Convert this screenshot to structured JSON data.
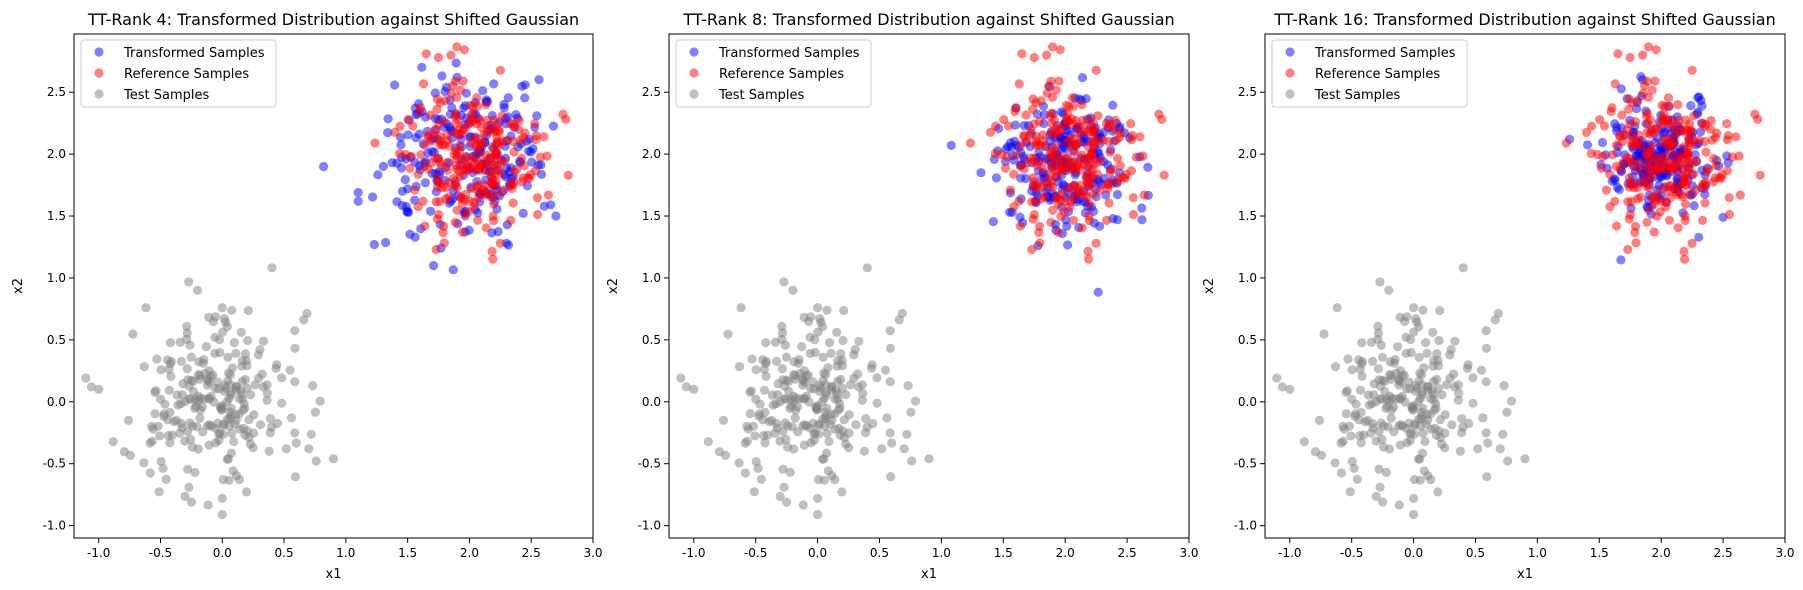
{
  "colors": {
    "transformed": "#0000ff",
    "reference": "#ff0000",
    "test": "#808080"
  },
  "chart_data": [
    {
      "type": "scatter",
      "title": "TT-Rank 4: Transformed Distribution against Shifted Gaussian",
      "xlabel": "x1",
      "ylabel": "x2",
      "xlim": [
        -1.2,
        3.0
      ],
      "ylim": [
        -1.1,
        2.97
      ],
      "xticks": [
        "-1.0",
        "-0.5",
        "0.0",
        "0.5",
        "1.0",
        "1.5",
        "2.0",
        "2.5",
        "3.0"
      ],
      "yticks": [
        "-1.0",
        "-0.5",
        "0.0",
        "0.5",
        "1.0",
        "1.5",
        "2.0",
        "2.5"
      ],
      "legend_position": "top-left",
      "grid": false,
      "series": [
        {
          "name": "Transformed Samples",
          "center": [
            2.0,
            2.0
          ],
          "spread": 0.32,
          "count": 230,
          "seed": 101,
          "points": [
            [
              0.82,
              1.9
            ],
            [
              1.1,
              1.62
            ],
            [
              1.1,
              1.69
            ],
            [
              1.23,
              1.27
            ],
            [
              1.71,
              1.1
            ],
            [
              2.7,
              1.5
            ],
            [
              1.56,
              1.33
            ],
            [
              2.3,
              1.28
            ],
            [
              1.9,
              2.62
            ]
          ]
        },
        {
          "name": "Reference Samples",
          "center": [
            2.0,
            2.0
          ],
          "spread": 0.28,
          "count": 250,
          "seed": 202,
          "points": [
            [
              1.65,
              2.81
            ],
            [
              1.75,
              2.78
            ],
            [
              1.85,
              2.8
            ],
            [
              2.8,
              1.83
            ],
            [
              2.78,
              2.28
            ],
            [
              1.73,
              1.23
            ],
            [
              2.25,
              1.28
            ]
          ]
        },
        {
          "name": "Test Samples",
          "center": [
            0.0,
            0.0
          ],
          "spread": 0.32,
          "count": 250,
          "seed": 303,
          "points": [
            [
              -1.0,
              0.1
            ],
            [
              -0.2,
              0.9
            ],
            [
              0.9,
              -0.46
            ],
            [
              0.0,
              -0.91
            ],
            [
              0.0,
              -0.78
            ],
            [
              -0.27,
              -0.69
            ],
            [
              0.0,
              0.76
            ],
            [
              0.7,
              -0.38
            ]
          ]
        }
      ]
    },
    {
      "type": "scatter",
      "title": "TT-Rank 8: Transformed Distribution against Shifted Gaussian",
      "xlabel": "x1",
      "ylabel": "x2",
      "xlim": [
        -1.2,
        3.0
      ],
      "ylim": [
        -1.1,
        2.97
      ],
      "xticks": [
        "-1.0",
        "-0.5",
        "0.0",
        "0.5",
        "1.0",
        "1.5",
        "2.0",
        "2.5",
        "3.0"
      ],
      "yticks": [
        "-1.0",
        "-0.5",
        "0.0",
        "0.5",
        "1.0",
        "1.5",
        "2.0",
        "2.5"
      ],
      "legend_position": "top-left",
      "grid": false,
      "series": [
        {
          "name": "Transformed Samples",
          "center": [
            2.0,
            1.97
          ],
          "spread": 0.26,
          "count": 230,
          "seed": 111,
          "points": [
            [
              1.08,
              2.07
            ],
            [
              1.78,
              1.26
            ],
            [
              2.62,
              1.47
            ],
            [
              1.32,
              1.85
            ]
          ]
        },
        {
          "name": "Reference Samples",
          "center": [
            2.0,
            2.0
          ],
          "spread": 0.28,
          "count": 250,
          "seed": 202,
          "points": [
            [
              1.65,
              2.81
            ],
            [
              1.75,
              2.78
            ],
            [
              1.85,
              2.8
            ],
            [
              2.8,
              1.83
            ],
            [
              2.78,
              2.28
            ],
            [
              1.73,
              1.23
            ],
            [
              2.25,
              1.28
            ]
          ]
        },
        {
          "name": "Test Samples",
          "center": [
            0.0,
            0.0
          ],
          "spread": 0.32,
          "count": 250,
          "seed": 303,
          "points": [
            [
              -1.0,
              0.1
            ],
            [
              -0.2,
              0.9
            ],
            [
              0.9,
              -0.46
            ],
            [
              0.0,
              -0.91
            ],
            [
              0.0,
              -0.78
            ],
            [
              -0.27,
              -0.69
            ],
            [
              0.0,
              0.76
            ],
            [
              0.7,
              -0.38
            ]
          ]
        }
      ]
    },
    {
      "type": "scatter",
      "title": "TT-Rank 16: Transformed Distribution against Shifted Gaussian",
      "xlabel": "x1",
      "ylabel": "x2",
      "xlim": [
        -1.2,
        3.0
      ],
      "ylim": [
        -1.1,
        2.97
      ],
      "xticks": [
        "-1.0",
        "-0.5",
        "0.0",
        "0.5",
        "1.0",
        "1.5",
        "2.0",
        "2.5",
        "3.0"
      ],
      "yticks": [
        "-1.0",
        "-0.5",
        "0.0",
        "0.5",
        "1.0",
        "1.5",
        "2.0",
        "2.5"
      ],
      "legend_position": "top-left",
      "grid": false,
      "series": [
        {
          "name": "Transformed Samples",
          "center": [
            2.0,
            1.98
          ],
          "spread": 0.22,
          "count": 230,
          "seed": 121,
          "points": [
            [
              1.26,
              2.12
            ],
            [
              1.85,
              2.6
            ],
            [
              2.5,
              1.49
            ]
          ]
        },
        {
          "name": "Reference Samples",
          "center": [
            2.0,
            2.0
          ],
          "spread": 0.28,
          "count": 250,
          "seed": 202,
          "points": [
            [
              1.65,
              2.81
            ],
            [
              1.75,
              2.78
            ],
            [
              1.85,
              2.8
            ],
            [
              2.8,
              1.83
            ],
            [
              2.78,
              2.28
            ],
            [
              1.73,
              1.23
            ],
            [
              2.25,
              1.28
            ]
          ]
        },
        {
          "name": "Test Samples",
          "center": [
            0.0,
            0.0
          ],
          "spread": 0.32,
          "count": 250,
          "seed": 303,
          "points": [
            [
              -1.0,
              0.1
            ],
            [
              -0.2,
              0.9
            ],
            [
              0.9,
              -0.46
            ],
            [
              0.0,
              -0.91
            ],
            [
              0.0,
              -0.78
            ],
            [
              -0.27,
              -0.69
            ],
            [
              0.0,
              0.76
            ],
            [
              0.7,
              -0.38
            ]
          ]
        }
      ]
    }
  ]
}
